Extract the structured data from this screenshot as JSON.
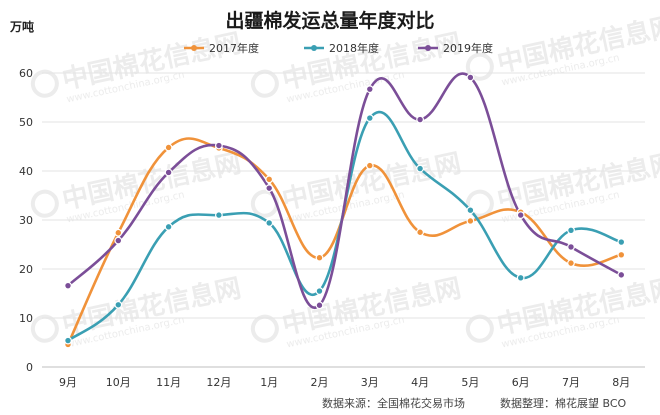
{
  "chart_data": {
    "type": "line",
    "title": "出疆棉发运总量年度对比",
    "ylabel": "万吨",
    "xlabel": "",
    "categories": [
      "9月",
      "10月",
      "11月",
      "12月",
      "1月",
      "2月",
      "3月",
      "4月",
      "5月",
      "6月",
      "7月",
      "8月"
    ],
    "ylim": [
      0,
      60
    ],
    "yticks": [
      "0",
      "10",
      "20",
      "30",
      "40",
      "50",
      "60"
    ],
    "grid": "horizontal",
    "legend_position": "top-center",
    "smooth": true,
    "series": [
      {
        "name": "2017年度",
        "color": "#f0923a",
        "values": [
          4.6,
          27.4,
          44.8,
          44.7,
          38.3,
          22.3,
          41.1,
          27.5,
          29.8,
          31.6,
          21.2,
          22.9
        ]
      },
      {
        "name": "2018年度",
        "color": "#3a9fb3",
        "values": [
          5.4,
          12.7,
          28.6,
          31.0,
          29.4,
          15.5,
          50.8,
          40.5,
          32.0,
          18.2,
          27.9,
          25.5
        ]
      },
      {
        "name": "2019年度",
        "color": "#7b4e98",
        "values": [
          16.6,
          25.8,
          39.7,
          45.2,
          36.5,
          12.6,
          56.7,
          50.5,
          59.1,
          31.0,
          24.5,
          18.8
        ]
      }
    ]
  },
  "source": "数据来源：全国棉花交易市场",
  "compiler": "数据整理：棉花展望 BCO",
  "watermark": {
    "text": "中国棉花信息网",
    "url": "www.cottonchina.org.cn"
  }
}
